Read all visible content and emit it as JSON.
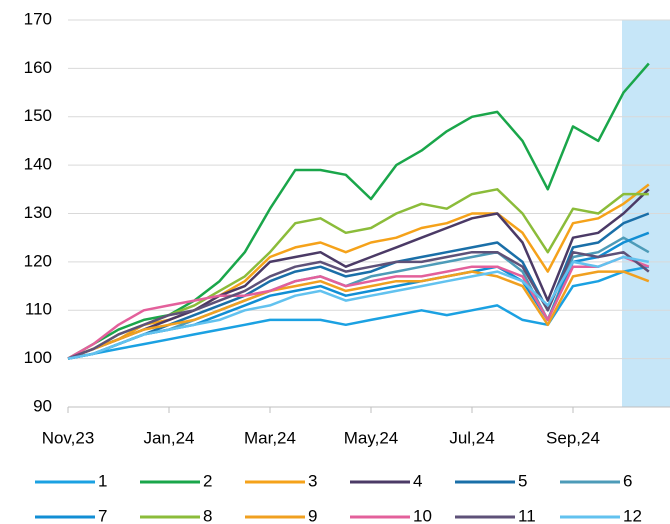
{
  "chart_data": {
    "type": "line",
    "categories": [
      "Nov,23",
      null,
      null,
      null,
      "Jan,24",
      null,
      null,
      null,
      "Mar,24",
      null,
      null,
      null,
      "May,24",
      null,
      null,
      null,
      "Jul,24",
      null,
      null,
      null,
      "Sep,24",
      null,
      null,
      null
    ],
    "series": [
      {
        "name": "1",
        "color": "#1ba1e2",
        "values": [
          100,
          101,
          102,
          103,
          104,
          105,
          106,
          107,
          108,
          108,
          108,
          107,
          108,
          109,
          110,
          109,
          110,
          111,
          108,
          107,
          115,
          116,
          118,
          119
        ]
      },
      {
        "name": "2",
        "color": "#1aa64a",
        "values": [
          100,
          103,
          106,
          108,
          109,
          112,
          116,
          122,
          131,
          139,
          139,
          138,
          133,
          140,
          143,
          147,
          150,
          151,
          145,
          135,
          148,
          145,
          155,
          161
        ]
      },
      {
        "name": "3",
        "color": "#f5a21a",
        "values": [
          100,
          102,
          104,
          107,
          108,
          110,
          113,
          116,
          121,
          123,
          124,
          122,
          124,
          125,
          127,
          128,
          130,
          130,
          126,
          118,
          128,
          129,
          132,
          136
        ]
      },
      {
        "name": "4",
        "color": "#4b3a66",
        "values": [
          100,
          102,
          104,
          106,
          108,
          110,
          113,
          115,
          120,
          121,
          122,
          119,
          121,
          123,
          125,
          127,
          129,
          130,
          124,
          112,
          125,
          126,
          130,
          135
        ]
      },
      {
        "name": "5",
        "color": "#1a6fa8",
        "values": [
          100,
          101,
          103,
          105,
          107,
          109,
          111,
          113,
          116,
          118,
          119,
          117,
          118,
          120,
          121,
          122,
          123,
          124,
          120,
          110,
          123,
          124,
          128,
          130
        ]
      },
      {
        "name": "6",
        "color": "#4d9bb8",
        "values": [
          100,
          101,
          103,
          105,
          106,
          108,
          110,
          112,
          114,
          116,
          117,
          115,
          117,
          118,
          119,
          120,
          121,
          122,
          118,
          108,
          121,
          122,
          125,
          122
        ]
      },
      {
        "name": "7",
        "color": "#118ed4",
        "values": [
          100,
          101,
          103,
          105,
          106,
          107,
          109,
          111,
          113,
          114,
          115,
          113,
          114,
          115,
          116,
          117,
          118,
          119,
          116,
          108,
          120,
          121,
          124,
          126
        ]
      },
      {
        "name": "8",
        "color": "#8bbc3a",
        "values": [
          100,
          102,
          105,
          107,
          109,
          111,
          114,
          117,
          122,
          128,
          129,
          126,
          127,
          130,
          132,
          131,
          134,
          135,
          130,
          122,
          131,
          130,
          134,
          134
        ]
      },
      {
        "name": "9",
        "color": "#f0a020",
        "values": [
          100,
          102,
          104,
          106,
          107,
          108,
          110,
          112,
          114,
          115,
          116,
          114,
          115,
          116,
          116,
          117,
          118,
          117,
          115,
          107,
          117,
          118,
          118,
          116
        ]
      },
      {
        "name": "10",
        "color": "#e3609b",
        "values": [
          100,
          103,
          107,
          110,
          111,
          112,
          113,
          113,
          114,
          116,
          117,
          115,
          116,
          117,
          117,
          118,
          119,
          119,
          117,
          108,
          119,
          119,
          121,
          119
        ]
      },
      {
        "name": "11",
        "color": "#5e5178",
        "values": [
          100,
          102,
          105,
          107,
          109,
          110,
          112,
          114,
          117,
          119,
          120,
          118,
          119,
          120,
          120,
          121,
          122,
          122,
          119,
          110,
          122,
          121,
          122,
          118
        ]
      },
      {
        "name": "12",
        "color": "#62c2ef",
        "values": [
          100,
          101,
          103,
          105,
          106,
          107,
          108,
          110,
          111,
          113,
          114,
          112,
          113,
          114,
          115,
          116,
          117,
          118,
          116,
          111,
          120,
          119,
          121,
          120
        ]
      }
    ],
    "ylim": [
      90,
      170
    ],
    "yticks": [
      90,
      100,
      110,
      120,
      130,
      140,
      150,
      160,
      170
    ],
    "grid": true,
    "legend": "bottom"
  }
}
